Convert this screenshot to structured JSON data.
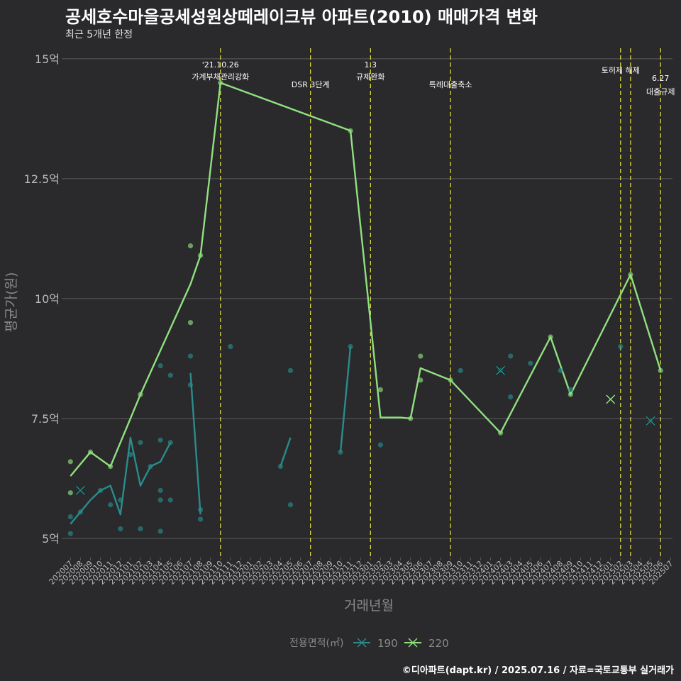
{
  "title": "공세호수마을공세성원상떼레이크뷰 아파트(2010) 매매가격 변화",
  "subtitle": "최근 5개년 한정",
  "caption": "©디아파트(dapt.kr) / 2025.07.16 / 자료=국토교통부 실거래가",
  "colors": {
    "background": "#2a292b",
    "grid": "#5c5c5c",
    "series_190": "#2a8c8c",
    "series_220": "#90e080",
    "vline": "#e8e840",
    "axis_text": "#bbbbbb",
    "axis_title": "#8a8a8a"
  },
  "chart_data": {
    "type": "line",
    "xlabel": "거래년월",
    "ylabel": "평균가(원)",
    "ylim": [
      4.6,
      15.25
    ],
    "y_ticks": [
      5,
      7.5,
      10,
      12.5,
      15
    ],
    "y_tick_labels": [
      "5억",
      "7.5억",
      "10억",
      "12.5억",
      "15억"
    ],
    "x_categories": [
      "202007",
      "202008",
      "202009",
      "202010",
      "202011",
      "202012",
      "202101",
      "202102",
      "202103",
      "202104",
      "202105",
      "202106",
      "202107",
      "202108",
      "202109",
      "202110",
      "202111",
      "202112",
      "202201",
      "202202",
      "202203",
      "202204",
      "202205",
      "202206",
      "202207",
      "202208",
      "202209",
      "202210",
      "202211",
      "202212",
      "202301",
      "202302",
      "202303",
      "202304",
      "202305",
      "202306",
      "202307",
      "202308",
      "202309",
      "202310",
      "202311",
      "202312",
      "202401",
      "202402",
      "202403",
      "202404",
      "202405",
      "202406",
      "202407",
      "202408",
      "202409",
      "202410",
      "202411",
      "202412",
      "202501",
      "202502",
      "202503",
      "202504",
      "202505",
      "202506",
      "202507"
    ],
    "x_tick_labels": [
      "202007",
      "202008",
      "202009",
      "202010",
      "202011",
      "202012",
      "202101",
      "202102",
      "202103",
      "202104",
      "202105",
      "202106",
      "202107",
      "202108",
      "202109",
      "202110",
      "202111",
      "202112",
      "202201",
      "202202",
      "202203",
      "202204",
      "202205",
      "202206",
      "202207",
      "202208",
      "202209",
      "202210",
      "202211",
      "202212",
      "202301",
      "202302",
      "202303",
      "202304",
      "202305",
      "202306",
      "202307",
      "202308",
      "202309",
      "202310",
      "202311",
      "202312",
      "202401",
      "202402",
      "202403",
      "202404",
      "202405",
      "202406",
      "202407",
      "202408",
      "202409",
      "202410",
      "202411",
      "202412",
      "202501",
      "202502",
      "202503",
      "202504",
      "202505",
      "202506",
      "202507"
    ],
    "legend_title": "전용면적(㎡)",
    "legend_position": "bottom",
    "series": [
      {
        "name": "190",
        "line_segments": [
          [
            [
              "202007",
              5.3
            ],
            [
              "202008",
              5.55
            ],
            [
              "202009",
              5.8
            ],
            [
              "202010",
              6.0
            ],
            [
              "202011",
              6.1
            ],
            [
              "202012",
              5.5
            ],
            [
              "202101",
              7.1
            ],
            [
              "202102",
              6.1
            ],
            [
              "202103",
              6.5
            ],
            [
              "202104",
              6.6
            ],
            [
              "202105",
              7.0
            ]
          ],
          [
            [
              "202107",
              8.45
            ],
            [
              "202108",
              5.5
            ]
          ],
          [
            [
              "202204",
              6.5
            ],
            [
              "202205",
              7.1
            ]
          ],
          [
            [
              "202210",
              6.8
            ],
            [
              "202211",
              9.0
            ]
          ]
        ],
        "points": [
          [
            "202007",
            5.1
          ],
          [
            "202007",
            5.45
          ],
          [
            "202008",
            5.55
          ],
          [
            "202010",
            6.0
          ],
          [
            "202011",
            5.7
          ],
          [
            "202012",
            5.2
          ],
          [
            "202012",
            5.8
          ],
          [
            "202101",
            6.75
          ],
          [
            "202102",
            5.2
          ],
          [
            "202102",
            7.0
          ],
          [
            "202103",
            6.5
          ],
          [
            "202104",
            5.15
          ],
          [
            "202104",
            5.8
          ],
          [
            "202104",
            6.0
          ],
          [
            "202104",
            7.05
          ],
          [
            "202104",
            8.6
          ],
          [
            "202105",
            5.8
          ],
          [
            "202105",
            7.0
          ],
          [
            "202105",
            8.4
          ],
          [
            "202107",
            8.2
          ],
          [
            "202107",
            8.8
          ],
          [
            "202108",
            5.4
          ],
          [
            "202108",
            5.6
          ],
          [
            "202111",
            9.0
          ],
          [
            "202204",
            6.5
          ],
          [
            "202205",
            5.7
          ],
          [
            "202205",
            8.5
          ],
          [
            "202210",
            6.8
          ],
          [
            "202211",
            9.0
          ],
          [
            "202302",
            6.95
          ],
          [
            "202310",
            8.5
          ],
          [
            "202402",
            8.5
          ],
          [
            "202403",
            7.95
          ],
          [
            "202403",
            8.8
          ],
          [
            "202405",
            8.65
          ],
          [
            "202408",
            8.5
          ],
          [
            "202409",
            8.1
          ],
          [
            "202502",
            9.0
          ],
          [
            "202505",
            7.45
          ]
        ],
        "cross_markers": [
          [
            "202008",
            6.0
          ],
          [
            "202402",
            8.5
          ],
          [
            "202505",
            7.45
          ]
        ]
      },
      {
        "name": "220",
        "line_segments": [
          [
            [
              "202007",
              6.3
            ],
            [
              "202009",
              6.8
            ],
            [
              "202011",
              6.5
            ],
            [
              "202101",
              7.5
            ],
            [
              "202102",
              8.0
            ],
            [
              "202107",
              10.3
            ],
            [
              "202108",
              10.9
            ],
            [
              "202110",
              14.5
            ],
            [
              "202211",
              13.5
            ],
            [
              "202302",
              7.52
            ],
            [
              "202304",
              7.52
            ],
            [
              "202305",
              7.5
            ],
            [
              "202306",
              8.55
            ],
            [
              "202309",
              8.3
            ],
            [
              "202402",
              7.2
            ],
            [
              "202407",
              9.2
            ],
            [
              "202409",
              8.0
            ],
            [
              "202503",
              10.5
            ],
            [
              "202506",
              8.5
            ]
          ]
        ],
        "points": [
          [
            "202007",
            6.6
          ],
          [
            "202007",
            5.95
          ],
          [
            "202009",
            6.8
          ],
          [
            "202011",
            6.5
          ],
          [
            "202102",
            8.0
          ],
          [
            "202107",
            9.5
          ],
          [
            "202107",
            11.1
          ],
          [
            "202108",
            10.9
          ],
          [
            "202110",
            14.5
          ],
          [
            "202211",
            13.5
          ],
          [
            "202302",
            8.1
          ],
          [
            "202305",
            7.5
          ],
          [
            "202306",
            8.3
          ],
          [
            "202306",
            8.8
          ],
          [
            "202309",
            8.3
          ],
          [
            "202402",
            7.2
          ],
          [
            "202407",
            9.2
          ],
          [
            "202409",
            8.0
          ],
          [
            "202503",
            10.5
          ],
          [
            "202506",
            8.5
          ]
        ],
        "cross_markers": [
          [
            "202501",
            7.9
          ]
        ]
      }
    ],
    "events": [
      {
        "x": "202110",
        "label_line1": "'21.10.26",
        "label_line2": "가계부채관리강화",
        "level": 1
      },
      {
        "x": "202207",
        "label_line1": "",
        "label_line2": "DSR 3단계",
        "level": 3
      },
      {
        "x": "202301",
        "label_line1": "1.3",
        "label_line2": "규제완화",
        "level": 1
      },
      {
        "x": "202309",
        "label_line1": "",
        "label_line2": "특례대출축소",
        "level": 3
      },
      {
        "x": "202502",
        "label_line1": "",
        "label_line2": "토허제 해제",
        "level": 2
      },
      {
        "x": "202503",
        "label_line1": "",
        "label_line2": "",
        "level": 0
      },
      {
        "x": "202506",
        "label_line1": "6.27",
        "label_line2": "대출규제",
        "level": 4
      }
    ]
  }
}
